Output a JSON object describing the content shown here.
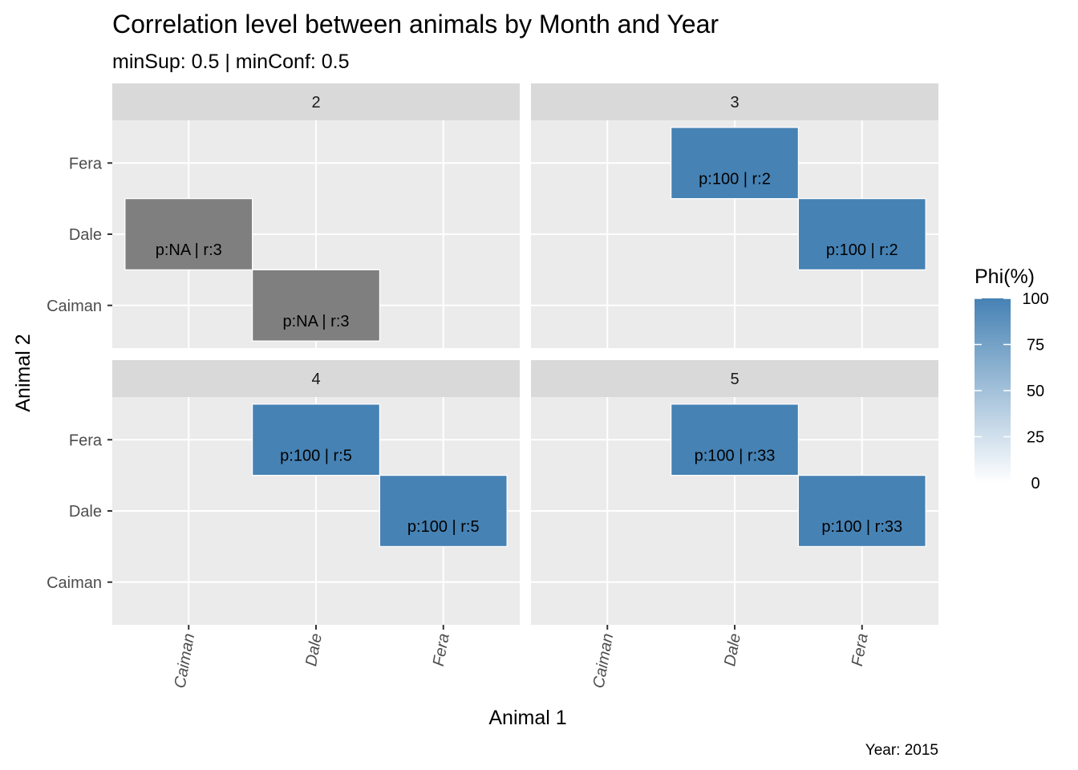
{
  "chart_data": {
    "type": "heatmap",
    "title": "Correlation level between animals by Month and Year",
    "subtitle": "minSup: 0.5 | minConf: 0.5",
    "xlabel": "Animal 1",
    "ylabel": "Animal 2",
    "caption": "Year: 2015",
    "x_categories": [
      "Caiman",
      "Dale",
      "Fera"
    ],
    "y_categories": [
      "Caiman",
      "Dale",
      "Fera"
    ],
    "legend": {
      "title": "Phi(%)",
      "ticks": [
        "100",
        "75",
        "50",
        "25",
        "0"
      ],
      "range": [
        0,
        100
      ],
      "color_low": "#FFFFFF",
      "color_high": "#4682B4",
      "na_color": "#7F7F7F",
      "position": "right"
    },
    "colors": {
      "panel_bg": "#EBEBEB",
      "strip_bg": "#D9D9D9",
      "grid": "#FFFFFF",
      "tile_border": "#FFFFFF"
    },
    "facets": [
      {
        "label": "2",
        "tiles": [
          {
            "x": "Caiman",
            "y": "Dale",
            "phi": null,
            "label": "p:NA | r:3"
          },
          {
            "x": "Dale",
            "y": "Caiman",
            "phi": null,
            "label": "p:NA | r:3"
          }
        ]
      },
      {
        "label": "3",
        "tiles": [
          {
            "x": "Dale",
            "y": "Fera",
            "phi": 100,
            "label": "p:100 | r:2"
          },
          {
            "x": "Fera",
            "y": "Dale",
            "phi": 100,
            "label": "p:100 | r:2"
          }
        ]
      },
      {
        "label": "4",
        "tiles": [
          {
            "x": "Dale",
            "y": "Fera",
            "phi": 100,
            "label": "p:100 | r:5"
          },
          {
            "x": "Fera",
            "y": "Dale",
            "phi": 100,
            "label": "p:100 | r:5"
          }
        ]
      },
      {
        "label": "5",
        "tiles": [
          {
            "x": "Dale",
            "y": "Fera",
            "phi": 100,
            "label": "p:100 | r:33"
          },
          {
            "x": "Fera",
            "y": "Dale",
            "phi": 100,
            "label": "p:100 | r:33"
          }
        ]
      }
    ]
  }
}
